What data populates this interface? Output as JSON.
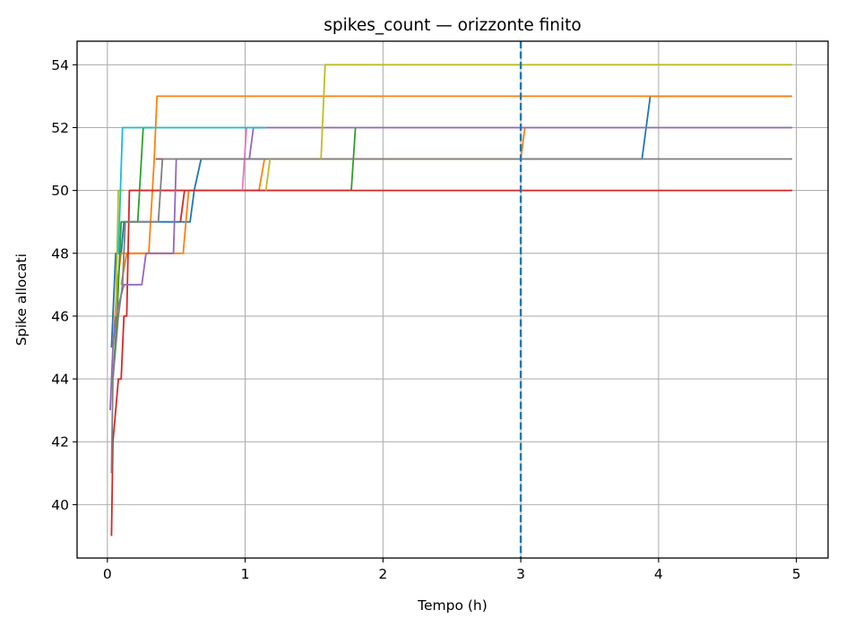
{
  "chart_data": {
    "type": "line",
    "title": "spikes_count — orizzonte finito",
    "xlabel": "Tempo (h)",
    "ylabel": "Spike allocati",
    "xlim": [
      -0.22,
      5.23
    ],
    "ylim": [
      38.3,
      54.75
    ],
    "xticks": [
      0,
      1,
      2,
      3,
      4,
      5
    ],
    "yticks": [
      40,
      42,
      44,
      46,
      48,
      50,
      52,
      54
    ],
    "grid": true,
    "legend": "none",
    "vline": {
      "x": 3.0,
      "color": "#1f77b4",
      "style": "dashed"
    },
    "series": [
      {
        "color": "#1f77b4",
        "points": [
          [
            0.03,
            45
          ],
          [
            0.06,
            48
          ],
          [
            0.1,
            48
          ],
          [
            0.12,
            49
          ],
          [
            0.6,
            49
          ],
          [
            0.63,
            50
          ],
          [
            0.68,
            51
          ],
          [
            3.88,
            51
          ],
          [
            3.94,
            53
          ],
          [
            4.97,
            53
          ]
        ]
      },
      {
        "color": "#ff7f0e",
        "points": [
          [
            0.04,
            45
          ],
          [
            0.07,
            47
          ],
          [
            0.1,
            48
          ],
          [
            0.3,
            48
          ],
          [
            0.34,
            51
          ],
          [
            0.36,
            53
          ],
          [
            4.97,
            53
          ]
        ]
      },
      {
        "color": "#ff7f0e",
        "points": [
          [
            0.1,
            47
          ],
          [
            0.14,
            48
          ],
          [
            0.55,
            48
          ],
          [
            0.59,
            50
          ],
          [
            1.1,
            50
          ],
          [
            1.14,
            51
          ],
          [
            3.0,
            51
          ],
          [
            3.03,
            52
          ]
        ]
      },
      {
        "color": "#2ca02c",
        "points": [
          [
            0.04,
            44
          ],
          [
            0.07,
            46
          ],
          [
            0.1,
            49
          ],
          [
            0.22,
            49
          ],
          [
            0.26,
            52
          ],
          [
            0.33,
            52
          ]
        ]
      },
      {
        "color": "#2ca02c",
        "points": [
          [
            0.16,
            50
          ],
          [
            1.77,
            50
          ],
          [
            1.8,
            52
          ]
        ]
      },
      {
        "color": "#d62728",
        "points": [
          [
            0.03,
            39
          ],
          [
            0.04,
            42
          ],
          [
            0.06,
            43
          ],
          [
            0.08,
            44
          ],
          [
            0.1,
            44
          ],
          [
            0.12,
            46
          ],
          [
            0.14,
            46
          ],
          [
            0.16,
            50
          ],
          [
            4.97,
            50
          ]
        ]
      },
      {
        "color": "#d62728",
        "points": [
          [
            0.53,
            49
          ],
          [
            0.56,
            50
          ]
        ]
      },
      {
        "color": "#9467bd",
        "points": [
          [
            0.02,
            43
          ],
          [
            0.04,
            45
          ],
          [
            0.06,
            46
          ],
          [
            0.12,
            47
          ],
          [
            0.25,
            47
          ],
          [
            0.28,
            48
          ],
          [
            0.48,
            48
          ],
          [
            0.5,
            51
          ],
          [
            1.03,
            51
          ],
          [
            1.06,
            52
          ],
          [
            4.97,
            52
          ]
        ]
      },
      {
        "color": "#8c564b",
        "points": [
          [
            0.35,
            51
          ],
          [
            0.4,
            51
          ]
        ]
      },
      {
        "color": "#e377c2",
        "points": [
          [
            0.98,
            50
          ],
          [
            1.01,
            52
          ]
        ]
      },
      {
        "color": "#7f7f7f",
        "points": [
          [
            0.03,
            41
          ],
          [
            0.04,
            44
          ],
          [
            0.06,
            45
          ],
          [
            0.08,
            46
          ],
          [
            0.11,
            47
          ],
          [
            0.13,
            49
          ],
          [
            0.37,
            49
          ],
          [
            0.4,
            51
          ],
          [
            4.97,
            51
          ]
        ]
      },
      {
        "color": "#bcbd22",
        "points": [
          [
            0.06,
            46
          ],
          [
            0.08,
            50
          ],
          [
            0.12,
            50
          ]
        ]
      },
      {
        "color": "#bcbd22",
        "points": [
          [
            1.15,
            50
          ],
          [
            1.18,
            51
          ]
        ]
      },
      {
        "color": "#bcbd22",
        "points": [
          [
            1.55,
            51
          ],
          [
            1.58,
            54
          ],
          [
            4.97,
            54
          ]
        ]
      },
      {
        "color": "#17becf",
        "points": [
          [
            0.08,
            48
          ],
          [
            0.11,
            52
          ],
          [
            1.15,
            52
          ]
        ]
      }
    ]
  }
}
